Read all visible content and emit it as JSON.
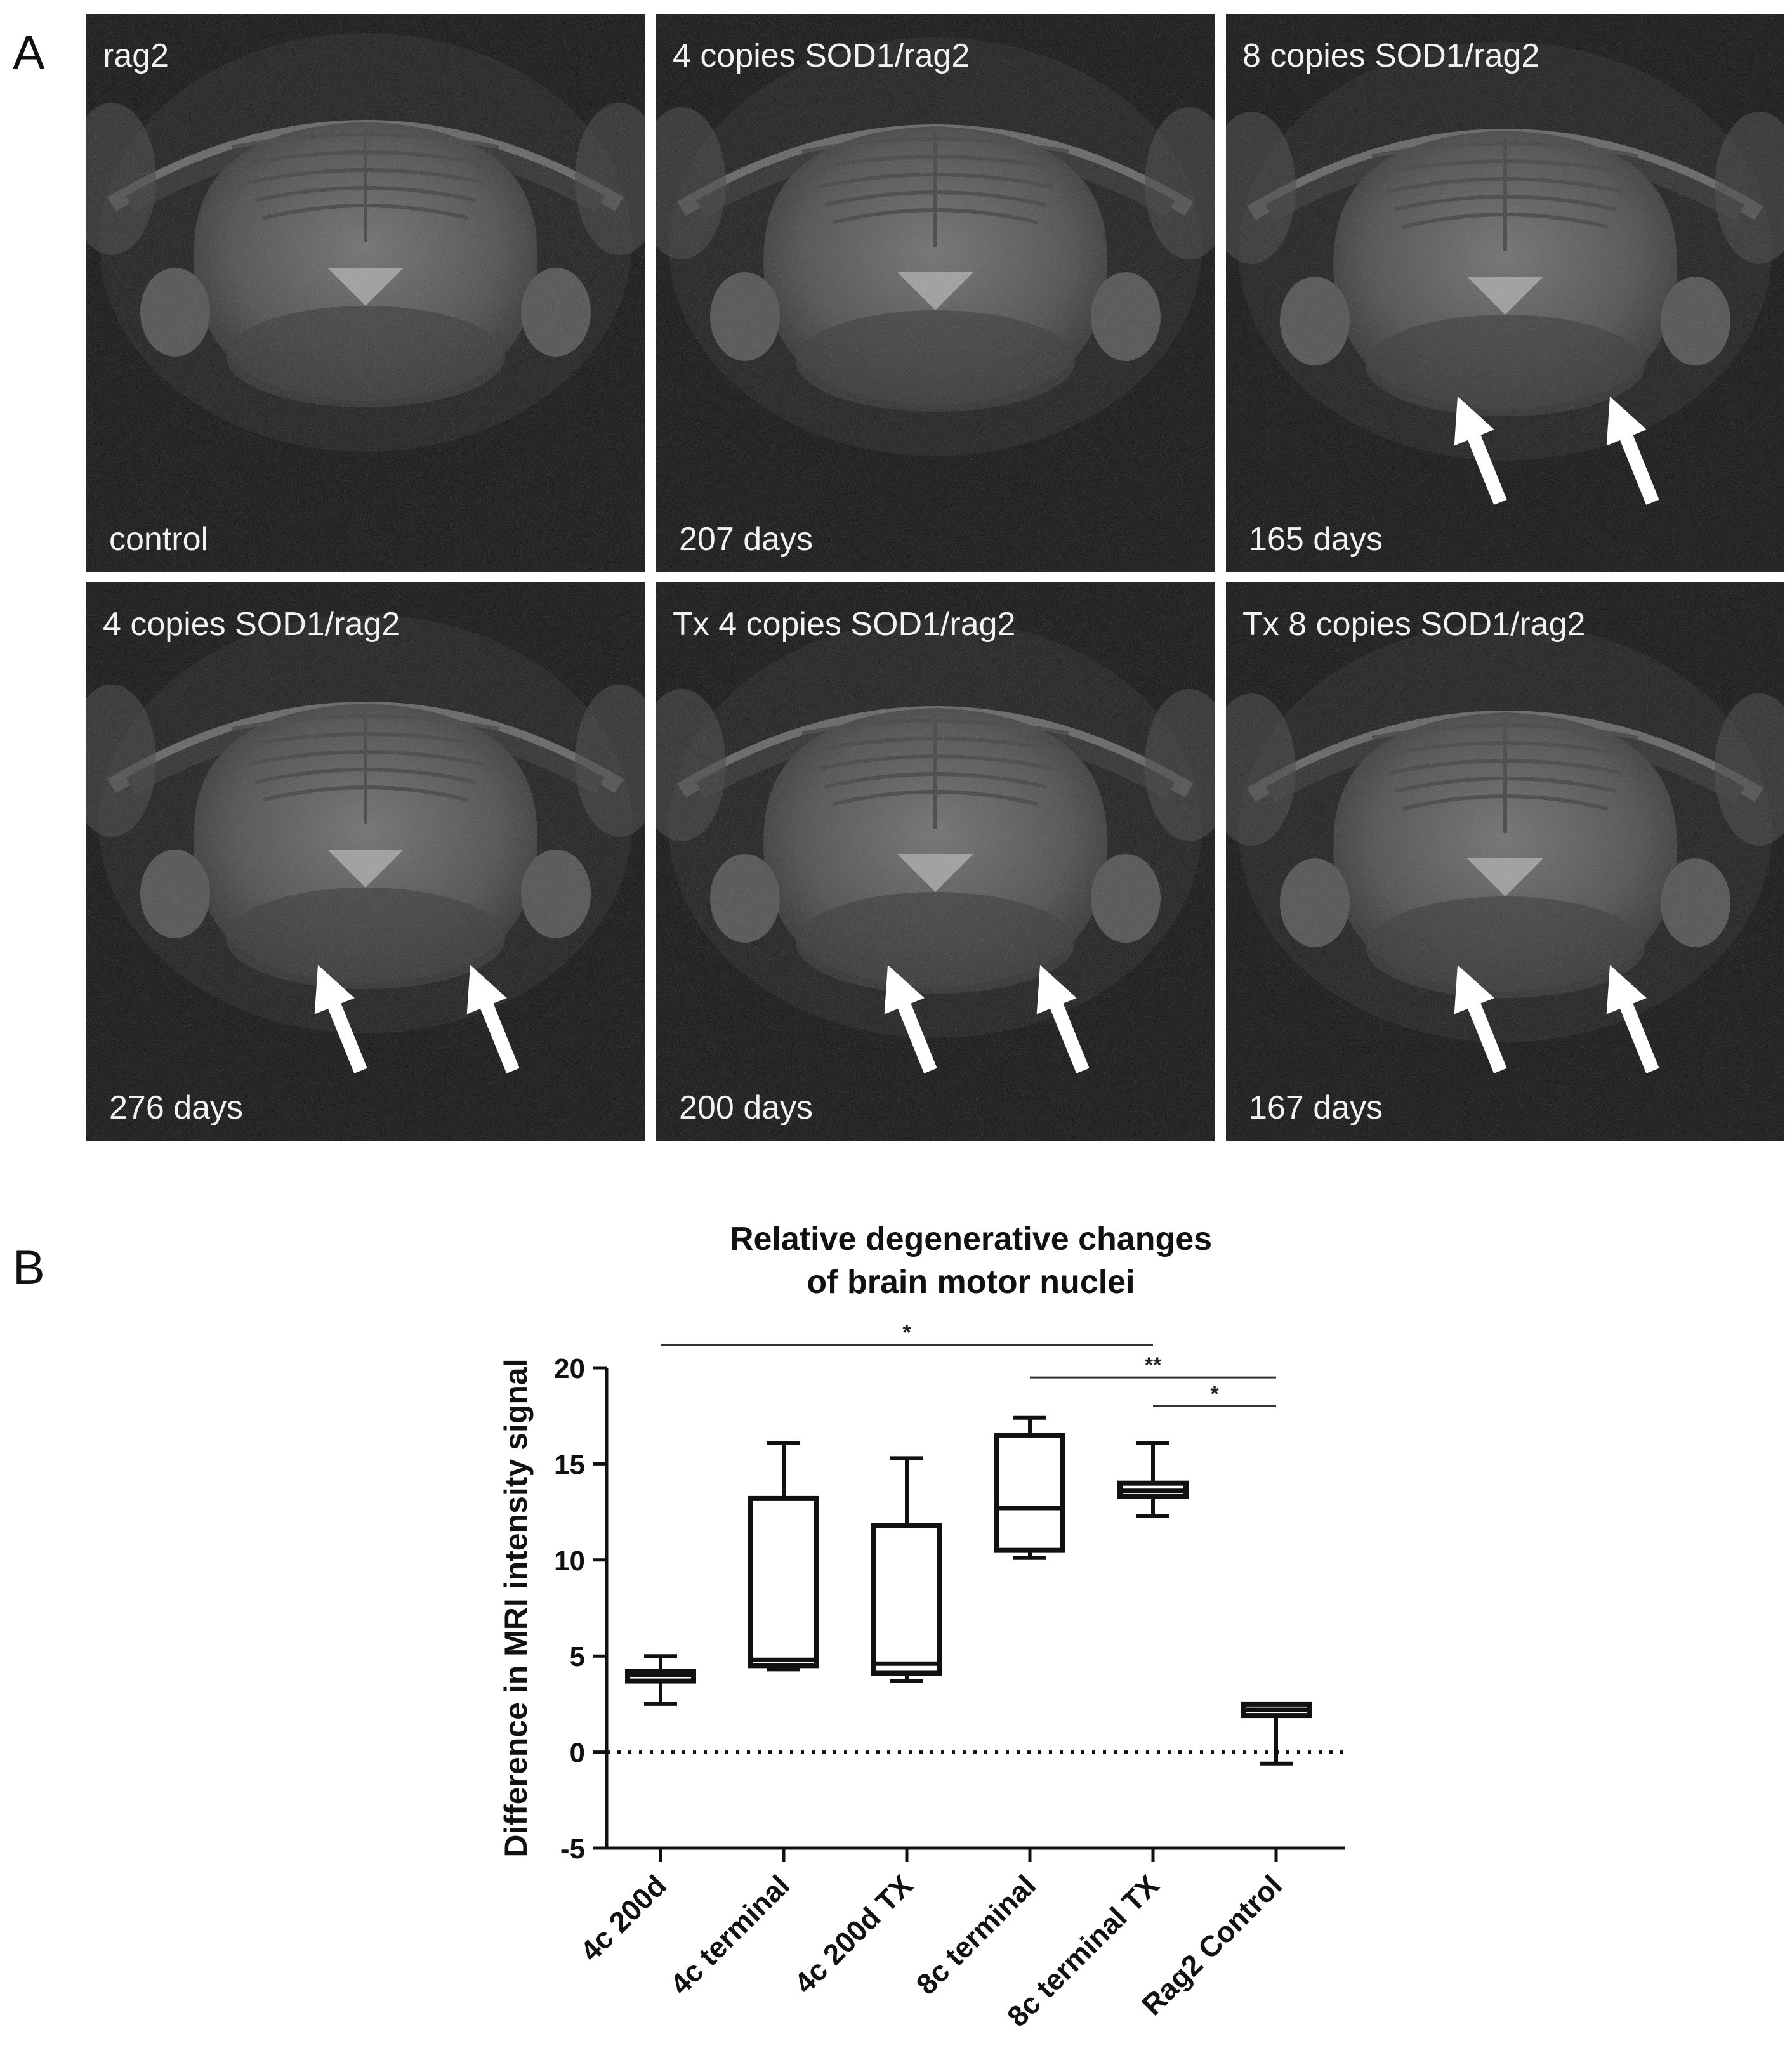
{
  "panel_a": {
    "letter": "A",
    "images": [
      {
        "title": "rag2",
        "caption": "control",
        "arrows": false
      },
      {
        "title": "4 copies SOD1/rag2",
        "caption": "207 days",
        "arrows": false
      },
      {
        "title": "8 copies SOD1/rag2",
        "caption": "165 days",
        "arrows": true
      },
      {
        "title": "4 copies SOD1/rag2",
        "caption": "276 days",
        "arrows": true
      },
      {
        "title": "Tx 4 copies SOD1/rag2",
        "caption": "200 days",
        "arrows": true
      },
      {
        "title": "Tx 8 copies SOD1/rag2",
        "caption": "167 days",
        "arrows": true
      }
    ]
  },
  "panel_b": {
    "letter": "B"
  },
  "chart_data": {
    "type": "boxplot",
    "title": [
      "Relative degenerative changes",
      "of brain motor nuclei"
    ],
    "ylabel": "Difference in MRI intensity signal",
    "xlabel": "",
    "ylim": [
      -5,
      20
    ],
    "yticks": [
      -5,
      0,
      5,
      10,
      15,
      20
    ],
    "reference_line": 0,
    "categories": [
      "4c 200d",
      "4c terminal",
      "4c 200d TX",
      "8c terminal",
      "8c terminal TX",
      "Rag2 Control"
    ],
    "boxes": [
      {
        "min": 2.5,
        "q1": 3.7,
        "median": 4.0,
        "q3": 4.2,
        "max": 5.0
      },
      {
        "min": 4.3,
        "q1": 4.5,
        "median": 4.8,
        "q3": 13.2,
        "max": 16.1
      },
      {
        "min": 3.7,
        "q1": 4.1,
        "median": 4.6,
        "q3": 11.8,
        "max": 15.3
      },
      {
        "min": 10.1,
        "q1": 10.5,
        "median": 12.7,
        "q3": 16.5,
        "max": 17.4
      },
      {
        "min": 12.3,
        "q1": 13.3,
        "median": 13.6,
        "q3": 14.0,
        "max": 16.1
      },
      {
        "min": -0.6,
        "q1": 1.9,
        "median": 2.2,
        "q3": 2.5,
        "max": 2.5
      }
    ],
    "significance": [
      {
        "from": 0,
        "to": 4,
        "label": "*",
        "y": 21.2
      },
      {
        "from": 3,
        "to": 5,
        "label": "**",
        "y": 19.5
      },
      {
        "from": 4,
        "to": 5,
        "label": "*",
        "y": 18.0
      }
    ]
  }
}
